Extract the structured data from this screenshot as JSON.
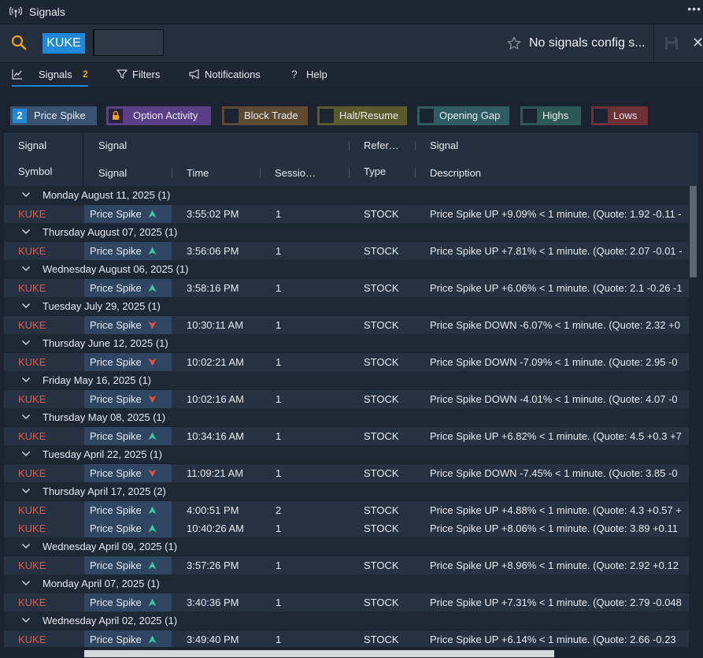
{
  "window": {
    "title": "Signals",
    "more_icon": "more-icon"
  },
  "search": {
    "ticker": "KUKE",
    "input_value": "",
    "config_text": "No signals config s..."
  },
  "tabs": [
    {
      "label": "Signals",
      "count": "2",
      "icon": "chart-line-icon"
    },
    {
      "label": "Filters",
      "icon": "filter-icon"
    },
    {
      "label": "Notifications",
      "icon": "megaphone-icon"
    },
    {
      "label": "Help",
      "icon": "question-icon"
    }
  ],
  "filters": [
    {
      "label": "Price Spike",
      "badge": "2",
      "color": "#3a5272"
    },
    {
      "label": "Option Activity",
      "color": "#5a3e86"
    },
    {
      "label": "Block Trade",
      "color": "#5e4a32"
    },
    {
      "label": "Halt/Resume",
      "color": "#5b5a2c"
    },
    {
      "label": "Opening Gap",
      "color": "#2e5c62"
    },
    {
      "label": "Highs",
      "color": "#2c5953"
    },
    {
      "label": "Lows",
      "color": "#6e3136"
    }
  ],
  "header": {
    "top": [
      "Signal",
      "Signal",
      "Refer…",
      "Signal"
    ],
    "bottom": [
      "Symbol",
      "Signal",
      "Time",
      "Sessio…",
      "Type",
      "Description"
    ]
  },
  "groups": [
    {
      "label": "Monday August 11, 2025 (1)",
      "rows": [
        {
          "symbol": "KUKE",
          "signal": "Price Spike",
          "dir": "up",
          "time": "3:55:02 PM",
          "session": "1",
          "type": "STOCK",
          "desc": "Price Spike UP +9.09% < 1 minute. (Quote: 1.92 -0.11 -"
        }
      ]
    },
    {
      "label": "Thursday August 07, 2025 (1)",
      "rows": [
        {
          "symbol": "KUKE",
          "signal": "Price Spike",
          "dir": "up",
          "time": "3:56:06 PM",
          "session": "1",
          "type": "STOCK",
          "desc": "Price Spike UP +7.81% < 1 minute. (Quote: 2.07 -0.01 -"
        }
      ]
    },
    {
      "label": "Wednesday August 06, 2025 (1)",
      "rows": [
        {
          "symbol": "KUKE",
          "signal": "Price Spike",
          "dir": "up",
          "time": "3:58:16 PM",
          "session": "1",
          "type": "STOCK",
          "desc": "Price Spike UP +6.06% < 1 minute. (Quote: 2.1 -0.26 -1"
        }
      ]
    },
    {
      "label": "Tuesday July 29, 2025 (1)",
      "rows": [
        {
          "symbol": "KUKE",
          "signal": "Price Spike",
          "dir": "down",
          "time": "10:30:11 AM",
          "session": "1",
          "type": "STOCK",
          "desc": "Price Spike DOWN -6.07% < 1 minute. (Quote: 2.32 +0"
        }
      ]
    },
    {
      "label": "Thursday June 12, 2025 (1)",
      "rows": [
        {
          "symbol": "KUKE",
          "signal": "Price Spike",
          "dir": "down",
          "time": "10:02:21 AM",
          "session": "1",
          "type": "STOCK",
          "desc": "Price Spike DOWN -7.09% < 1 minute. (Quote: 2.95 -0"
        }
      ]
    },
    {
      "label": "Friday May 16, 2025 (1)",
      "rows": [
        {
          "symbol": "KUKE",
          "signal": "Price Spike",
          "dir": "down",
          "time": "10:02:16 AM",
          "session": "1",
          "type": "STOCK",
          "desc": "Price Spike DOWN -4.01% < 1 minute. (Quote: 4.07 -0"
        }
      ]
    },
    {
      "label": "Thursday May 08, 2025 (1)",
      "rows": [
        {
          "symbol": "KUKE",
          "signal": "Price Spike",
          "dir": "up",
          "time": "10:34:16 AM",
          "session": "1",
          "type": "STOCK",
          "desc": "Price Spike UP +6.82% < 1 minute. (Quote: 4.5 +0.3 +7"
        }
      ]
    },
    {
      "label": "Tuesday April 22, 2025 (1)",
      "rows": [
        {
          "symbol": "KUKE",
          "signal": "Price Spike",
          "dir": "down",
          "time": "11:09:21 AM",
          "session": "1",
          "type": "STOCK",
          "desc": "Price Spike DOWN -7.45% < 1 minute. (Quote: 3.85 -0"
        }
      ]
    },
    {
      "label": "Thursday April 17, 2025 (2)",
      "rows": [
        {
          "symbol": "KUKE",
          "signal": "Price Spike",
          "dir": "up",
          "time": "4:00:51 PM",
          "session": "2",
          "type": "STOCK",
          "desc": "Price Spike UP +4.88% < 1 minute. (Quote: 4.3 +0.57 +"
        },
        {
          "symbol": "KUKE",
          "signal": "Price Spike",
          "dir": "up",
          "time": "10:40:26 AM",
          "session": "1",
          "type": "STOCK",
          "desc": "Price Spike UP +8.06% < 1 minute. (Quote: 3.89 +0.11"
        }
      ]
    },
    {
      "label": "Wednesday April 09, 2025 (1)",
      "rows": [
        {
          "symbol": "KUKE",
          "signal": "Price Spike",
          "dir": "up",
          "time": "3:57:26 PM",
          "session": "1",
          "type": "STOCK",
          "desc": "Price Spike UP +8.96% < 1 minute. (Quote: 2.92 +0.12"
        }
      ]
    },
    {
      "label": "Monday April 07, 2025 (1)",
      "rows": [
        {
          "symbol": "KUKE",
          "signal": "Price Spike",
          "dir": "up",
          "time": "3:40:36 PM",
          "session": "1",
          "type": "STOCK",
          "desc": "Price Spike UP +7.31% < 1 minute. (Quote: 2.79 -0.048"
        }
      ]
    },
    {
      "label": "Wednesday April 02, 2025 (1)",
      "rows": [
        {
          "symbol": "KUKE",
          "signal": "Price Spike",
          "dir": "up",
          "time": "3:49:40 PM",
          "session": "1",
          "type": "STOCK",
          "desc": "Price Spike UP +6.14% < 1 minute. (Quote: 2.66 -0.23"
        }
      ]
    }
  ],
  "colors": {
    "up": "#3dc9a3",
    "down": "#e5533f",
    "accent": "#1f88d8",
    "symbol": "#e05a4b"
  }
}
